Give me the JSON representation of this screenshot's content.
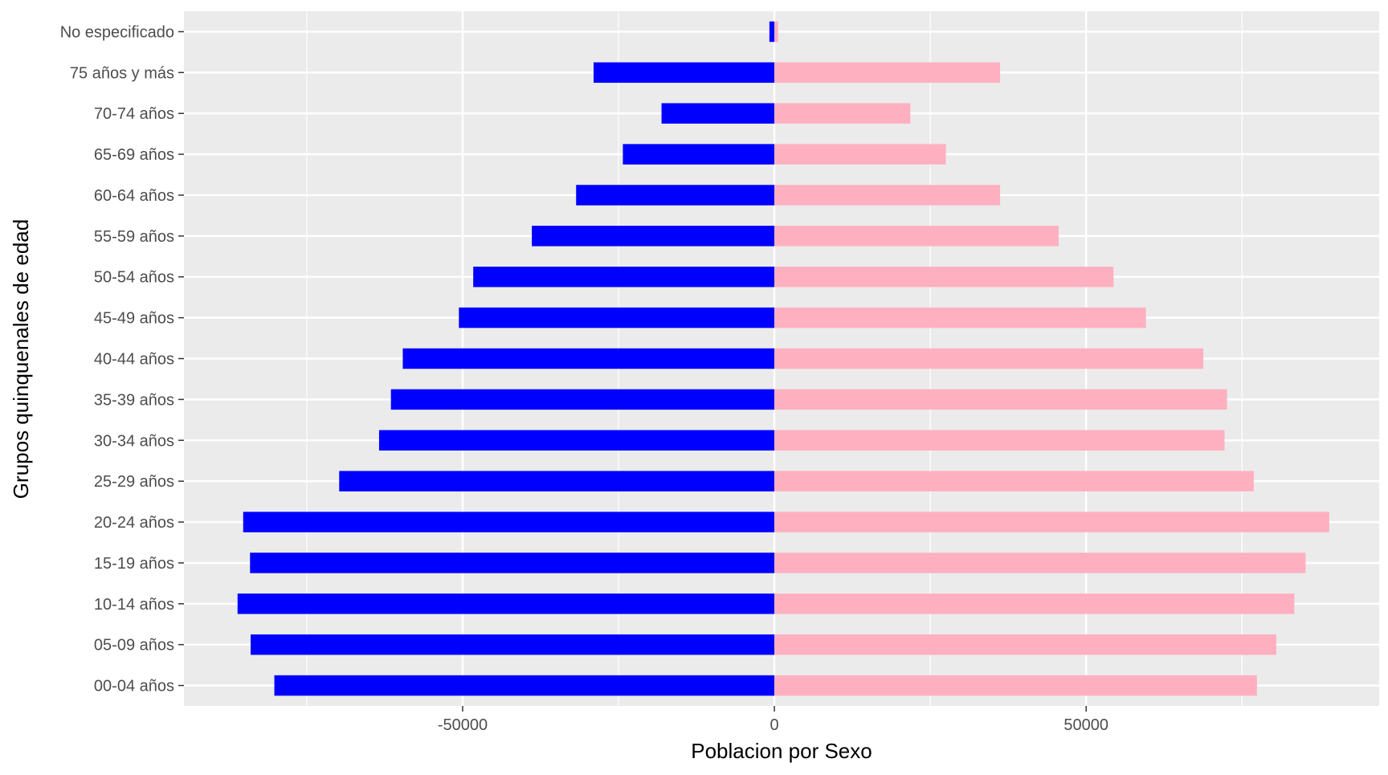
{
  "chart_data": {
    "type": "bar",
    "orientation": "horizontal",
    "xlabel": "Poblacion por Sexo",
    "ylabel": "Grupos quinquenales de edad",
    "xlim": [
      -94700,
      97000
    ],
    "xticks": [
      -50000,
      0,
      50000
    ],
    "xtick_labels": [
      "-50000",
      "0",
      "50000"
    ],
    "grid": true,
    "legend": "none",
    "categories": [
      "00-04 años",
      "05-09 años",
      "10-14 años",
      "15-19 años",
      "20-24 años",
      "25-29 años",
      "30-34 años",
      "35-39 años",
      "40-44 años",
      "45-49 años",
      "50-54 años",
      "55-59 años",
      "60-64 años",
      "65-69 años",
      "70-74 años",
      "75 años y más",
      "No especificado"
    ],
    "series": [
      {
        "color": "#0000ff",
        "values": [
          -80200,
          -84000,
          -86100,
          -84100,
          -85200,
          -69800,
          -63400,
          -61500,
          -59600,
          -50600,
          -48300,
          -38900,
          -31800,
          -24300,
          -18100,
          -29000,
          -800
        ]
      },
      {
        "color": "#ffb0c0",
        "values": [
          77400,
          80500,
          83400,
          85200,
          89000,
          76900,
          72200,
          72600,
          68800,
          59600,
          54400,
          45600,
          36200,
          27500,
          21800,
          36200,
          600
        ]
      }
    ]
  }
}
